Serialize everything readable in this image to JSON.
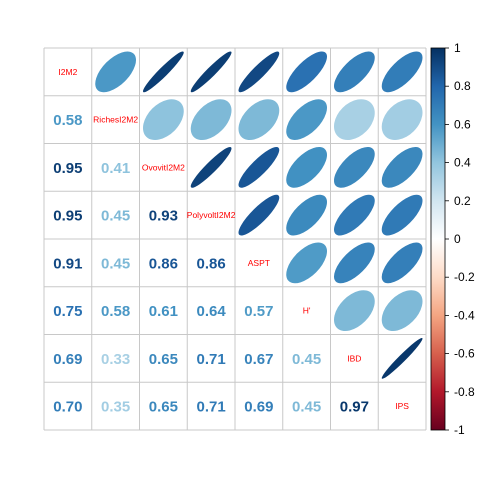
{
  "chart_data": {
    "type": "heatmap",
    "variables": [
      "I2M2",
      "RichesI2M2",
      "OvovitI2M2",
      "PolyvoltI2M2",
      "ASPT",
      "H'",
      "IBD",
      "IPS"
    ],
    "lower_panel": "number",
    "upper_panel": "ellipse",
    "matrix": [
      [
        1.0,
        0.58,
        0.95,
        0.95,
        0.91,
        0.75,
        0.69,
        0.7
      ],
      [
        0.58,
        1.0,
        0.41,
        0.45,
        0.45,
        0.58,
        0.33,
        0.35
      ],
      [
        0.95,
        0.41,
        1.0,
        0.93,
        0.86,
        0.61,
        0.65,
        0.65
      ],
      [
        0.95,
        0.45,
        0.93,
        1.0,
        0.86,
        0.64,
        0.71,
        0.71
      ],
      [
        0.91,
        0.45,
        0.86,
        0.86,
        1.0,
        0.57,
        0.67,
        0.69
      ],
      [
        0.75,
        0.58,
        0.61,
        0.64,
        0.57,
        1.0,
        0.45,
        0.45
      ],
      [
        0.69,
        0.33,
        0.65,
        0.71,
        0.67,
        0.45,
        1.0,
        0.97
      ],
      [
        0.7,
        0.35,
        0.65,
        0.71,
        0.69,
        0.45,
        0.97,
        1.0
      ]
    ],
    "colorbar": {
      "range": [
        -1,
        1
      ],
      "ticks": [
        "1",
        "0.8",
        "0.6",
        "0.4",
        "0.2",
        "0",
        "-0.2",
        "-0.4",
        "-0.6",
        "-0.8",
        "-1"
      ]
    },
    "colors": {
      "palette": [
        "#67001F",
        "#B2182B",
        "#D6604D",
        "#F4A582",
        "#FDDBC7",
        "#FFFFFF",
        "#D1E5F0",
        "#92C5DE",
        "#4393C3",
        "#2166AC",
        "#053061"
      ],
      "diagonal_label": "#ff0000",
      "grid": "#c8c8c8"
    }
  }
}
